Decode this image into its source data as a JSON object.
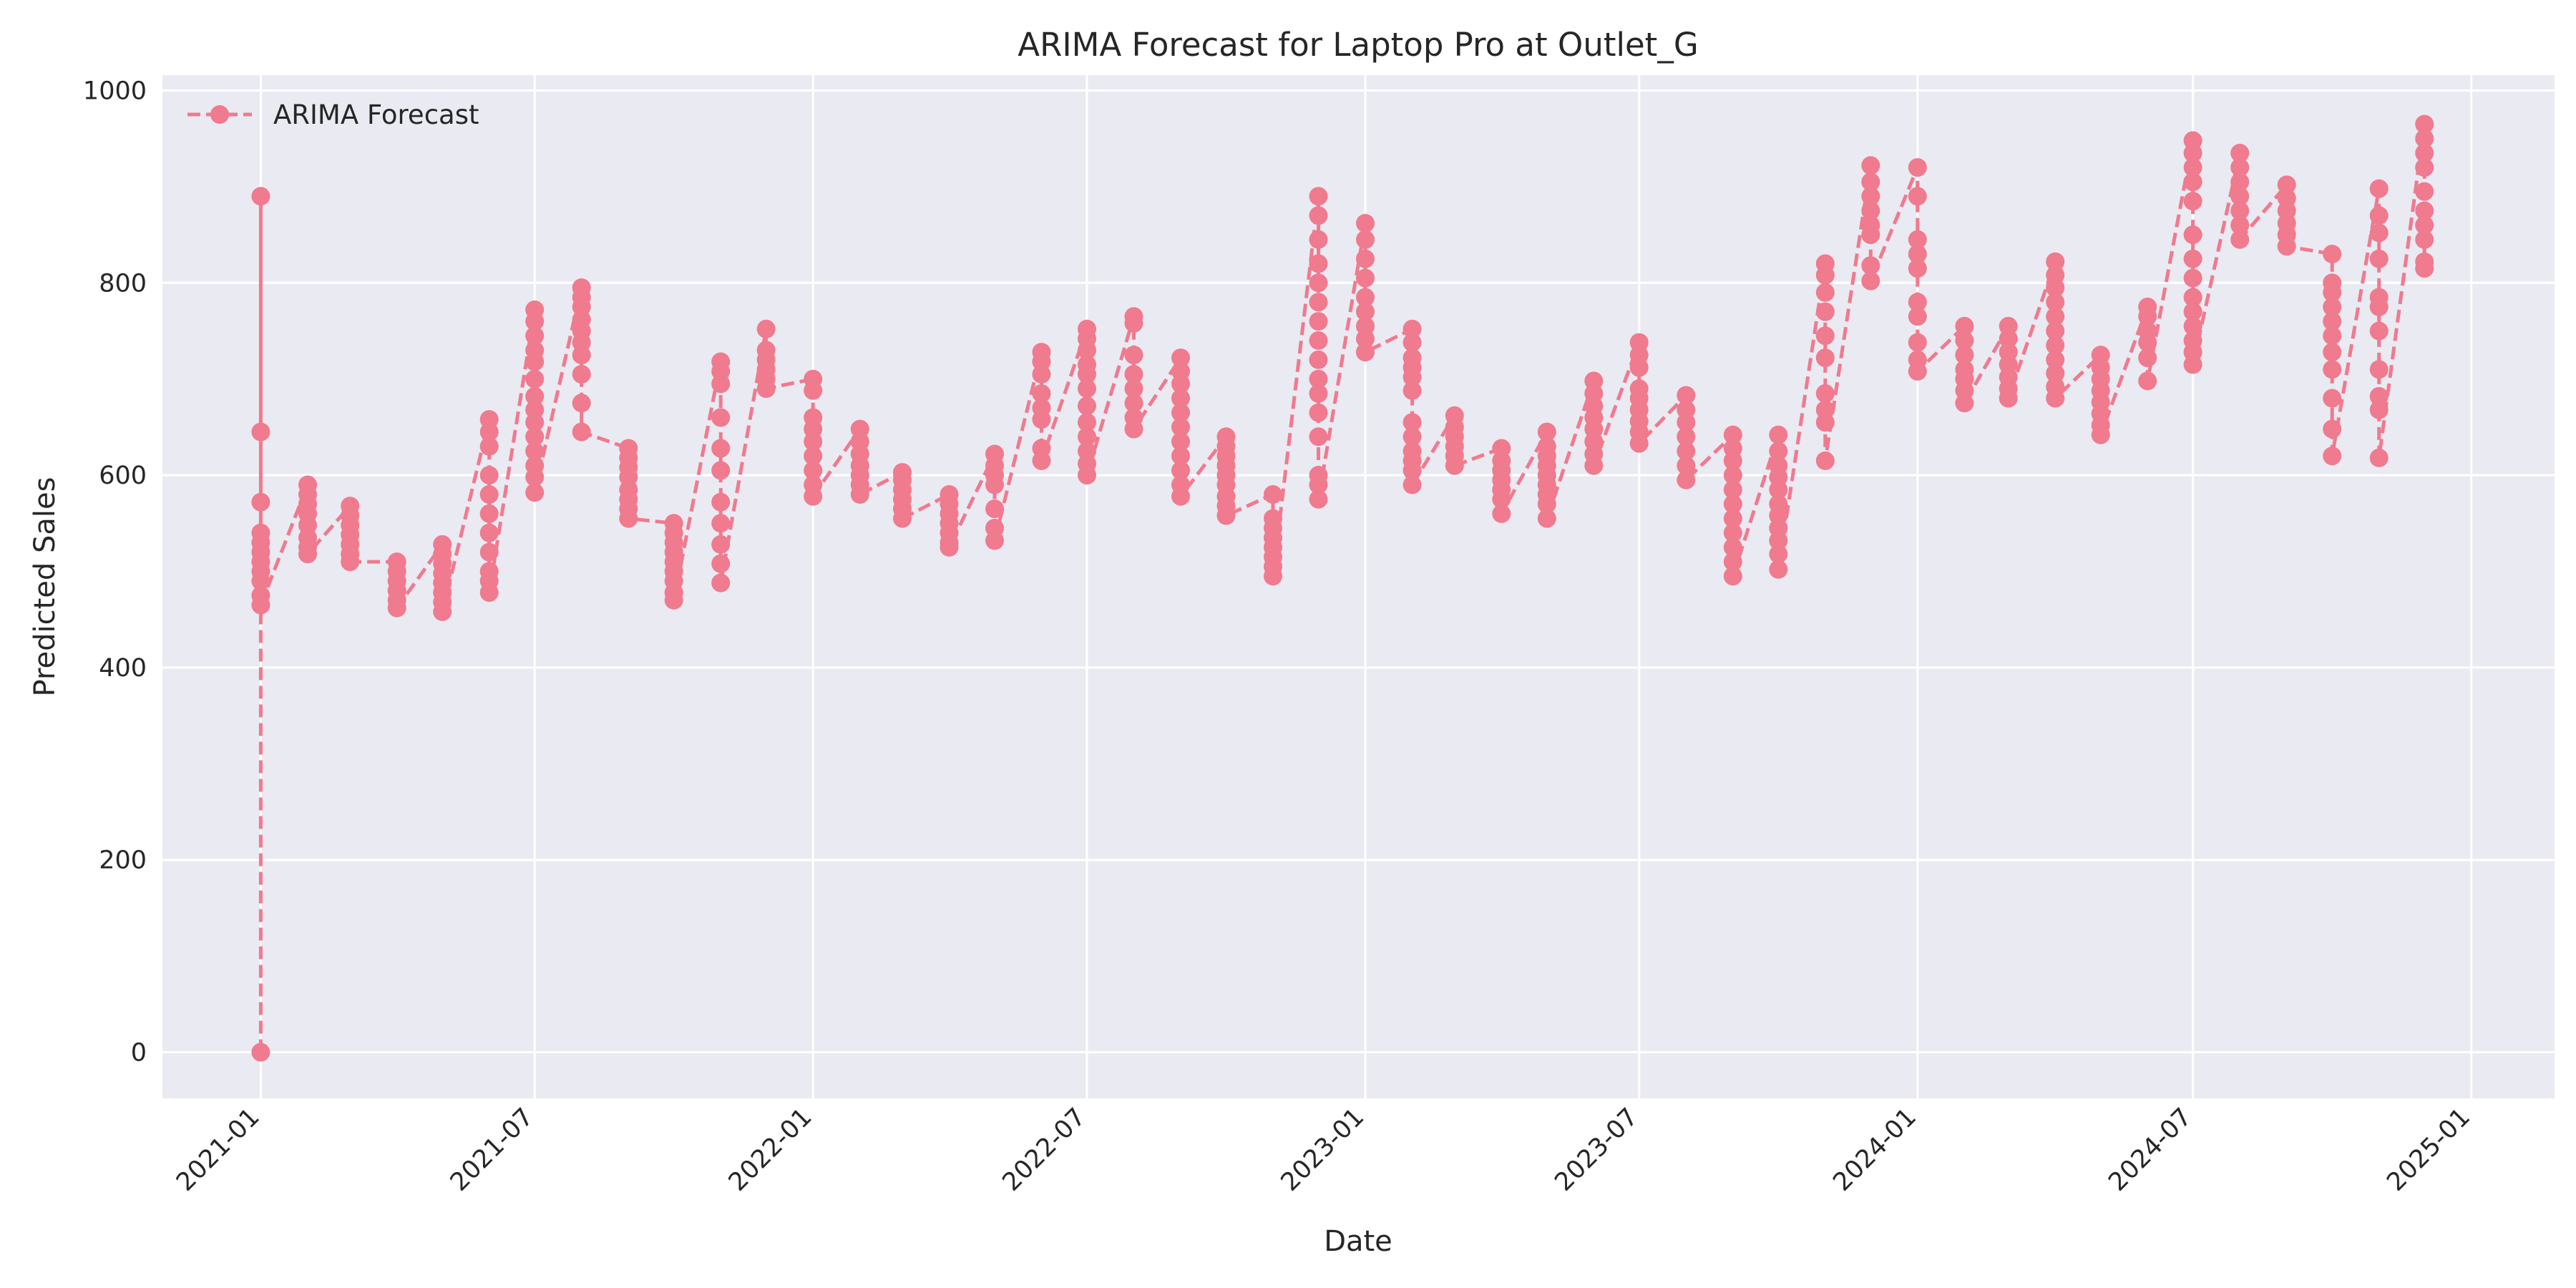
{
  "chart_data": {
    "type": "line",
    "title": "ARIMA Forecast for Laptop Pro at Outlet_G",
    "xlabel": "Date",
    "ylabel": "Predicted Sales",
    "xlim": [
      "2020-10-28",
      "2025-02-25"
    ],
    "ylim": [
      -48,
      1016
    ],
    "x_ticks": [
      "2021-01",
      "2021-07",
      "2022-01",
      "2022-07",
      "2023-01",
      "2023-07",
      "2024-01",
      "2024-07",
      "2025-01"
    ],
    "y_ticks": [
      0,
      200,
      400,
      600,
      800,
      1000
    ],
    "grid": true,
    "legend": {
      "position": "top-left",
      "entries": [
        "ARIMA Forecast"
      ]
    },
    "colors": {
      "series": "#f07a8e",
      "background": "#eaeaf2",
      "grid": "#ffffff"
    },
    "style": {
      "line": "dashed",
      "marker": "circle"
    },
    "series": [
      {
        "name": "ARIMA Forecast",
        "groups": [
          {
            "date": "2021-01-01",
            "values": [
              0,
              890,
              645,
              572,
              540,
              530,
              520,
              510,
              500,
              490,
              475,
              465
            ]
          },
          {
            "date": "2021-02-01",
            "values": [
              590,
              580,
              570,
              560,
              548,
              535,
              525,
              518
            ]
          },
          {
            "date": "2021-03-01",
            "values": [
              568,
              558,
              548,
              538,
              528,
              518,
              510
            ]
          },
          {
            "date": "2021-04-01",
            "values": [
              510,
              500,
              490,
              480,
              470,
              462
            ]
          },
          {
            "date": "2021-05-01",
            "values": [
              528,
              518,
              508,
              498,
              488,
              478,
              468,
              458
            ]
          },
          {
            "date": "2021-06-01",
            "values": [
              658,
              645,
              630,
              600,
              580,
              560,
              540,
              520,
              500,
              490,
              478
            ]
          },
          {
            "date": "2021-07-01",
            "values": [
              772,
              760,
              745,
              730,
              718,
              700,
              682,
              668,
              655,
              640,
              625,
              610,
              598,
              582
            ]
          },
          {
            "date": "2021-08-01",
            "values": [
              795,
              785,
              775,
              762,
              750,
              738,
              725,
              705,
              675,
              645
            ]
          },
          {
            "date": "2021-09-01",
            "values": [
              628,
              618,
              608,
              598,
              585,
              575,
              565,
              555
            ]
          },
          {
            "date": "2021-10-01",
            "values": [
              550,
              540,
              530,
              520,
              510,
              500,
              490,
              478,
              470
            ]
          },
          {
            "date": "2021-11-01",
            "values": [
              718,
              708,
              695,
              660,
              628,
              605,
              572,
              550,
              528,
              508,
              488
            ]
          },
          {
            "date": "2021-12-01",
            "values": [
              752,
              730,
              720,
              710,
              700,
              690
            ]
          },
          {
            "date": "2022-01-01",
            "values": [
              700,
              688,
              660,
              648,
              635,
              620,
              605,
              590,
              578
            ]
          },
          {
            "date": "2022-02-01",
            "values": [
              648,
              635,
              622,
              610,
              600,
              590,
              580
            ]
          },
          {
            "date": "2022-03-01",
            "values": [
              603,
              595,
              585,
              575,
              565,
              555
            ]
          },
          {
            "date": "2022-04-01",
            "values": [
              580,
              570,
              560,
              550,
              540,
              530,
              525
            ]
          },
          {
            "date": "2022-05-01",
            "values": [
              622,
              610,
              600,
              590,
              565,
              545,
              532
            ]
          },
          {
            "date": "2022-06-01",
            "values": [
              728,
              718,
              705,
              685,
              670,
              658,
              628,
              615
            ]
          },
          {
            "date": "2022-07-01",
            "values": [
              752,
              742,
              730,
              715,
              705,
              690,
              672,
              655,
              640,
              625,
              612,
              600
            ]
          },
          {
            "date": "2022-08-01",
            "values": [
              765,
              758,
              725,
              705,
              690,
              675,
              660,
              648
            ]
          },
          {
            "date": "2022-09-01",
            "values": [
              722,
              708,
              695,
              680,
              665,
              650,
              635,
              620,
              605,
              590,
              578
            ]
          },
          {
            "date": "2022-10-01",
            "values": [
              640,
              630,
              620,
              610,
              600,
              590,
              578,
              568,
              558
            ]
          },
          {
            "date": "2022-11-01",
            "values": [
              580,
              555,
              545,
              535,
              525,
              515,
              505,
              495
            ]
          },
          {
            "date": "2022-12-01",
            "values": [
              890,
              870,
              845,
              820,
              800,
              780,
              760,
              740,
              720,
              700,
              685,
              665,
              640,
              600,
              590,
              575
            ]
          },
          {
            "date": "2023-01-01",
            "values": [
              862,
              845,
              825,
              805,
              785,
              770,
              755,
              742,
              728
            ]
          },
          {
            "date": "2023-02-01",
            "values": [
              752,
              738,
              722,
              712,
              702,
              688,
              655,
              640,
              625,
              615,
              605,
              590
            ]
          },
          {
            "date": "2023-03-01",
            "values": [
              662,
              650,
              640,
              630,
              620,
              610
            ]
          },
          {
            "date": "2023-04-01",
            "values": [
              628,
              615,
              605,
              595,
              585,
              575,
              560
            ]
          },
          {
            "date": "2023-05-01",
            "values": [
              645,
              630,
              620,
              610,
              600,
              590,
              580,
              570,
              555
            ]
          },
          {
            "date": "2023-06-01",
            "values": [
              698,
              685,
              672,
              660,
              648,
              635,
              622,
              610
            ]
          },
          {
            "date": "2023-07-01",
            "values": [
              738,
              725,
              712,
              690,
              680,
              668,
              656,
              645,
              633
            ]
          },
          {
            "date": "2023-08-01",
            "values": [
              683,
              668,
              655,
              640,
              625,
              610,
              595
            ]
          },
          {
            "date": "2023-09-01",
            "values": [
              642,
              628,
              615,
              600,
              585,
              570,
              555,
              540,
              525,
              510,
              495
            ]
          },
          {
            "date": "2023-10-01",
            "values": [
              642,
              625,
              610,
              598,
              585,
              570,
              558,
              545,
              532,
              518,
              502
            ]
          },
          {
            "date": "2023-11-01",
            "values": [
              820,
              808,
              790,
              770,
              745,
              722,
              685,
              668,
              655,
              615
            ]
          },
          {
            "date": "2023-12-01",
            "values": [
              922,
              905,
              890,
              875,
              860,
              850,
              818,
              802
            ]
          },
          {
            "date": "2024-01-01",
            "values": [
              920,
              890,
              845,
              830,
              815,
              780,
              765,
              738,
              720,
              708
            ]
          },
          {
            "date": "2024-02-01",
            "values": [
              755,
              740,
              725,
              710,
              700,
              688,
              675
            ]
          },
          {
            "date": "2024-03-01",
            "values": [
              755,
              742,
              728,
              715,
              702,
              690,
              680
            ]
          },
          {
            "date": "2024-04-01",
            "values": [
              822,
              808,
              795,
              780,
              765,
              750,
              735,
              720,
              706,
              692,
              680
            ]
          },
          {
            "date": "2024-05-01",
            "values": [
              725,
              712,
              700,
              688,
              676,
              664,
              652,
              642
            ]
          },
          {
            "date": "2024-06-01",
            "values": [
              775,
              765,
              750,
              738,
              722,
              698
            ]
          },
          {
            "date": "2024-07-01",
            "values": [
              948,
              935,
              920,
              905,
              885,
              850,
              825,
              805,
              785,
              770,
              755,
              740,
              728,
              715
            ]
          },
          {
            "date": "2024-08-01",
            "values": [
              935,
              920,
              905,
              890,
              875,
              860,
              845
            ]
          },
          {
            "date": "2024-09-01",
            "values": [
              902,
              888,
              875,
              862,
              850,
              838
            ]
          },
          {
            "date": "2024-10-01",
            "values": [
              830,
              800,
              790,
              775,
              760,
              745,
              728,
              710,
              680,
              648,
              620
            ]
          },
          {
            "date": "2024-11-01",
            "values": [
              898,
              870,
              852,
              825,
              785,
              775,
              750,
              710,
              682,
              668,
              618
            ]
          },
          {
            "date": "2024-12-01",
            "values": [
              965,
              950,
              935,
              920,
              895,
              875,
              860,
              845,
              822,
              815
            ]
          }
        ]
      }
    ]
  }
}
